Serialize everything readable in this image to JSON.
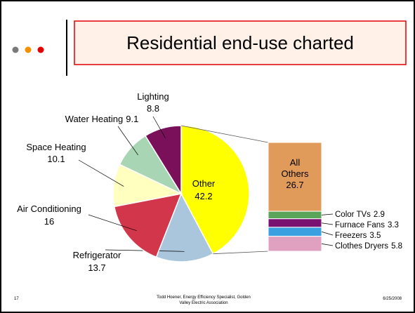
{
  "slide": {
    "title": "Residential end-use charted",
    "footer_left": "17",
    "footer_center": [
      "Todd Hoener, Energy Efficiency Specialist, Golden",
      "Valley Electric Association"
    ],
    "footer_right": "6/25/2008"
  },
  "chart_data": {
    "type": "pie",
    "categories": [
      "Other",
      "Refrigerator",
      "Air Conditioning",
      "Space Heating",
      "Water Heating",
      "Lighting"
    ],
    "values": [
      42.2,
      13.7,
      16,
      10.1,
      9.1,
      8.8
    ],
    "colors": [
      "#ffff00",
      "#a9c6dc",
      "#d2364a",
      "#ffffc0",
      "#a8d5b4",
      "#7a0f5a"
    ],
    "breakdown": {
      "categories": [
        "All Others",
        "Color TVs",
        "Furnace Fans",
        "Freezers",
        "Clothes Dryers"
      ],
      "values": [
        26.7,
        2.9,
        3.3,
        3.5,
        5.8
      ],
      "colors": [
        "#e09a5a",
        "#5aa55a",
        "#7a1070",
        "#3aa0e0",
        "#e0a0c0"
      ]
    }
  }
}
